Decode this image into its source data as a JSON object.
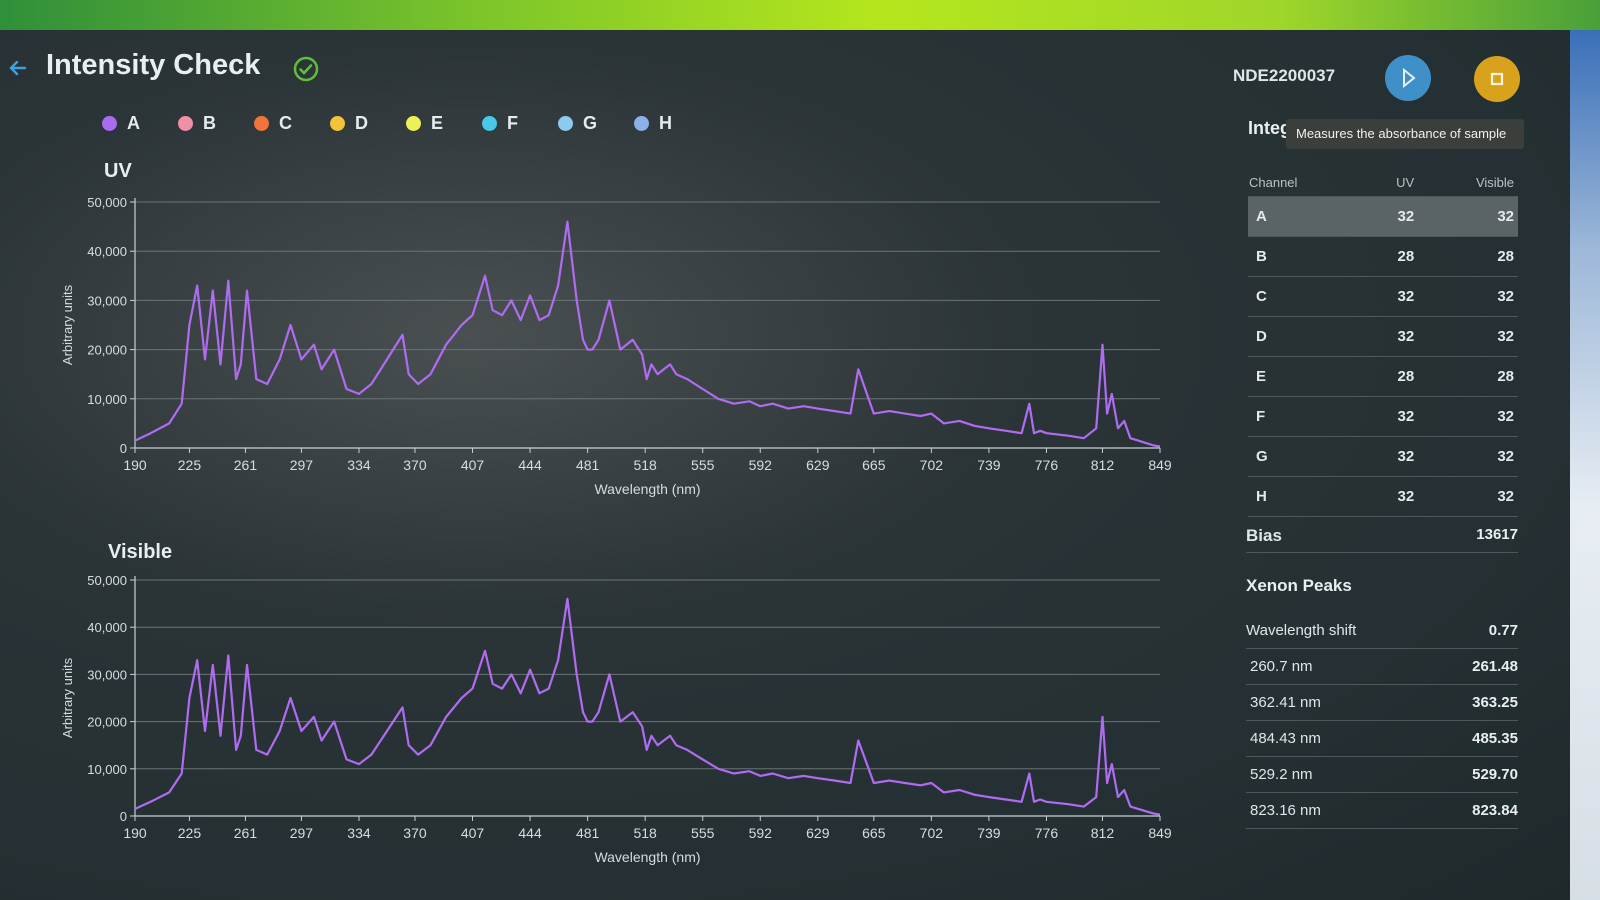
{
  "header": {
    "title": "Intensity Check",
    "device_id": "NDE2200037"
  },
  "colors": {
    "accent_play": "#3f8fc8",
    "accent_stop": "#d9a21c",
    "status_ok": "#5fbf3a",
    "trace": "#b06cf0"
  },
  "legend": [
    {
      "label": "A",
      "color": "#a96bf0"
    },
    {
      "label": "B",
      "color": "#ef8fa8"
    },
    {
      "label": "C",
      "color": "#f2743a"
    },
    {
      "label": "D",
      "color": "#f2c23a"
    },
    {
      "label": "E",
      "color": "#eef05a"
    },
    {
      "label": "F",
      "color": "#49c8e8"
    },
    {
      "label": "G",
      "color": "#8ccbf0"
    },
    {
      "label": "H",
      "color": "#8cb0e8"
    }
  ],
  "panel": {
    "heading": "Integ",
    "tooltip": "Measures the absorbance of sample",
    "columns": [
      "Channel",
      "UV",
      "Visible"
    ],
    "channels": [
      {
        "name": "A",
        "uv": "32",
        "visible": "32"
      },
      {
        "name": "B",
        "uv": "28",
        "visible": "28"
      },
      {
        "name": "C",
        "uv": "32",
        "visible": "32"
      },
      {
        "name": "D",
        "uv": "32",
        "visible": "32"
      },
      {
        "name": "E",
        "uv": "28",
        "visible": "28"
      },
      {
        "name": "F",
        "uv": "32",
        "visible": "32"
      },
      {
        "name": "G",
        "uv": "32",
        "visible": "32"
      },
      {
        "name": "H",
        "uv": "32",
        "visible": "32"
      }
    ],
    "bias_label": "Bias",
    "bias_value": "13617",
    "xenon_title": "Xenon Peaks",
    "shift_label": "Wavelength shift",
    "shift_value": "0.77",
    "peaks": [
      {
        "label": "260.7 nm",
        "value": "261.48"
      },
      {
        "label": "362.41 nm",
        "value": "363.25"
      },
      {
        "label": "484.43 nm",
        "value": "485.35"
      },
      {
        "label": "529.2 nm",
        "value": "529.70"
      },
      {
        "label": "823.16 nm",
        "value": "823.84"
      }
    ]
  },
  "chart_data": [
    {
      "type": "line",
      "title": "UV",
      "xlabel": "Wavelength (nm)",
      "ylabel": "Arbitrary units",
      "xlim": [
        190,
        849
      ],
      "ylim": [
        0,
        50000
      ],
      "xticks": [
        "190",
        "225",
        "261",
        "297",
        "334",
        "370",
        "407",
        "444",
        "481",
        "518",
        "555",
        "592",
        "629",
        "665",
        "702",
        "739",
        "776",
        "812",
        "849"
      ],
      "yticks": [
        "0",
        "10,000",
        "20,000",
        "30,000",
        "40,000",
        "50,000"
      ],
      "grid": true,
      "series": [
        {
          "x": [
            190,
            200,
            212,
            220,
            225,
            230,
            235,
            240,
            245,
            250,
            255,
            258,
            262,
            268,
            275,
            283,
            290,
            297,
            305,
            310,
            318,
            326,
            334,
            342,
            352,
            362,
            366,
            372,
            380,
            390,
            400,
            407,
            415,
            420,
            426,
            432,
            438,
            444,
            450,
            456,
            462,
            468,
            474,
            478,
            481,
            484,
            488,
            495,
            502,
            510,
            516,
            519,
            522,
            526,
            530,
            534,
            538,
            545,
            555,
            565,
            575,
            585,
            592,
            600,
            610,
            620,
            629,
            640,
            650,
            655,
            665,
            675,
            685,
            695,
            702,
            710,
            720,
            730,
            739,
            750,
            760,
            765,
            768,
            772,
            776,
            790,
            800,
            808,
            812,
            815,
            818,
            822,
            826,
            830,
            835,
            840,
            845,
            849
          ],
          "y": [
            1500,
            3000,
            5000,
            9000,
            25000,
            33000,
            18000,
            32000,
            17000,
            34000,
            14000,
            17000,
            32000,
            14000,
            13000,
            18000,
            25000,
            18000,
            21000,
            16000,
            20000,
            12000,
            11000,
            13000,
            18000,
            23000,
            15000,
            13000,
            15000,
            21000,
            25000,
            27000,
            35000,
            28000,
            27000,
            30000,
            26000,
            31000,
            26000,
            27000,
            33000,
            46000,
            30000,
            22000,
            20000,
            20000,
            22000,
            30000,
            20000,
            22000,
            19000,
            14000,
            17000,
            15000,
            16000,
            17000,
            15000,
            14000,
            12000,
            10000,
            9000,
            9500,
            8500,
            9000,
            8000,
            8500,
            8000,
            7500,
            7000,
            16000,
            7000,
            7500,
            7000,
            6500,
            7000,
            5000,
            5500,
            4500,
            4000,
            3500,
            3000,
            9000,
            3000,
            3500,
            3000,
            2500,
            2000,
            4000,
            21000,
            7000,
            11000,
            4000,
            5500,
            2000,
            1500,
            1000,
            500,
            300
          ]
        }
      ]
    },
    {
      "type": "line",
      "title": "Visible",
      "xlabel": "Wavelength (nm)",
      "ylabel": "Arbitrary units",
      "xlim": [
        190,
        849
      ],
      "ylim": [
        0,
        50000
      ],
      "xticks": [
        "190",
        "225",
        "261",
        "297",
        "334",
        "370",
        "407",
        "444",
        "481",
        "518",
        "555",
        "592",
        "629",
        "665",
        "702",
        "739",
        "776",
        "812",
        "849"
      ],
      "yticks": [
        "0",
        "10,000",
        "20,000",
        "30,000",
        "40,000",
        "50,000"
      ],
      "grid": true,
      "series": [
        {
          "x": [
            190,
            200,
            212,
            220,
            225,
            230,
            235,
            240,
            245,
            250,
            255,
            258,
            262,
            268,
            275,
            283,
            290,
            297,
            305,
            310,
            318,
            326,
            334,
            342,
            352,
            362,
            366,
            372,
            380,
            390,
            400,
            407,
            415,
            420,
            426,
            432,
            438,
            444,
            450,
            456,
            462,
            468,
            474,
            478,
            481,
            484,
            488,
            495,
            502,
            510,
            516,
            519,
            522,
            526,
            530,
            534,
            538,
            545,
            555,
            565,
            575,
            585,
            592,
            600,
            610,
            620,
            629,
            640,
            650,
            655,
            665,
            675,
            685,
            695,
            702,
            710,
            720,
            730,
            739,
            750,
            760,
            765,
            768,
            772,
            776,
            790,
            800,
            808,
            812,
            815,
            818,
            822,
            826,
            830,
            835,
            840,
            845,
            849
          ],
          "y": [
            1500,
            3000,
            5000,
            9000,
            25000,
            33000,
            18000,
            32000,
            17000,
            34000,
            14000,
            17000,
            32000,
            14000,
            13000,
            18000,
            25000,
            18000,
            21000,
            16000,
            20000,
            12000,
            11000,
            13000,
            18000,
            23000,
            15000,
            13000,
            15000,
            21000,
            25000,
            27000,
            35000,
            28000,
            27000,
            30000,
            26000,
            31000,
            26000,
            27000,
            33000,
            46000,
            30000,
            22000,
            20000,
            20000,
            22000,
            30000,
            20000,
            22000,
            19000,
            14000,
            17000,
            15000,
            16000,
            17000,
            15000,
            14000,
            12000,
            10000,
            9000,
            9500,
            8500,
            9000,
            8000,
            8500,
            8000,
            7500,
            7000,
            16000,
            7000,
            7500,
            7000,
            6500,
            7000,
            5000,
            5500,
            4500,
            4000,
            3500,
            3000,
            9000,
            3000,
            3500,
            3000,
            2500,
            2000,
            4000,
            21000,
            7000,
            11000,
            4000,
            5500,
            2000,
            1500,
            1000,
            500,
            300
          ]
        }
      ]
    }
  ]
}
